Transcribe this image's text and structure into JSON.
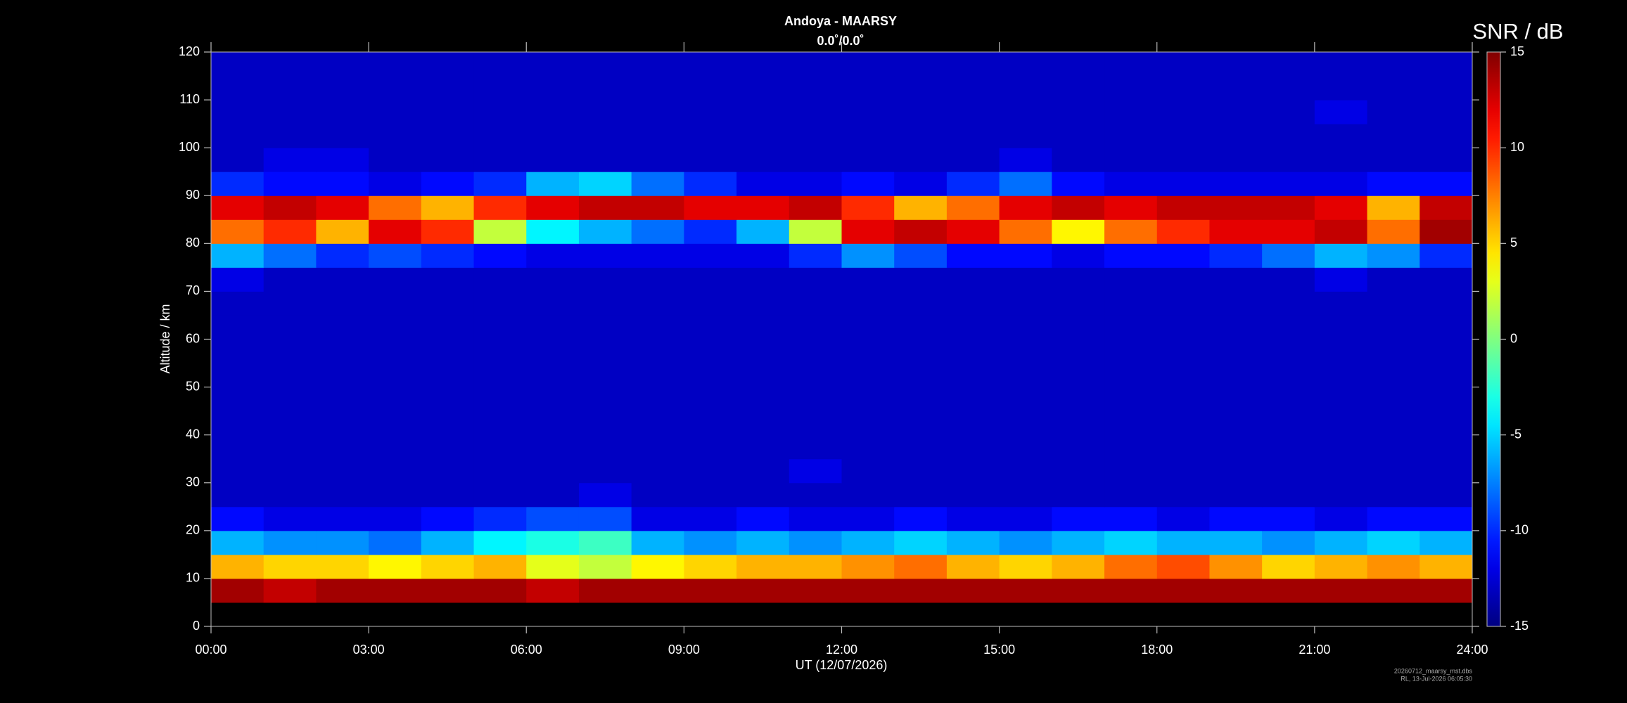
{
  "chart_data": {
    "type": "heatmap",
    "title": "Andoya - MAARSY",
    "subtitle": "0.0˚/0.0˚",
    "xlabel": "UT (12/07/2026)",
    "ylabel": "Altitude / km",
    "colorbar_label": "SNR / dB",
    "colormap": "jet",
    "footnotes": [
      "20260712_maarsy_mst.dbs",
      "RL, 13-Jul-2026 06:05:30"
    ],
    "xlim": [
      0,
      24
    ],
    "ylim": [
      0,
      120
    ],
    "clim": [
      -15,
      15
    ],
    "xticks": [
      {
        "value": 0,
        "label": "00:00"
      },
      {
        "value": 3,
        "label": "03:00"
      },
      {
        "value": 6,
        "label": "06:00"
      },
      {
        "value": 9,
        "label": "09:00"
      },
      {
        "value": 12,
        "label": "12:00"
      },
      {
        "value": 15,
        "label": "15:00"
      },
      {
        "value": 18,
        "label": "18:00"
      },
      {
        "value": 21,
        "label": "21:00"
      },
      {
        "value": 24,
        "label": "24:00"
      }
    ],
    "yticks": [
      0,
      10,
      20,
      30,
      40,
      50,
      60,
      70,
      80,
      90,
      100,
      110,
      120
    ],
    "cticks": [
      -15,
      -10,
      -5,
      0,
      5,
      10,
      15
    ],
    "xbins": [
      0,
      1,
      2,
      3,
      4,
      5,
      6,
      7,
      8,
      9,
      10,
      11,
      12,
      13,
      14,
      15,
      16,
      17,
      18,
      19,
      20,
      21,
      22,
      23,
      24
    ],
    "ybins": [
      0,
      5,
      10,
      15,
      20,
      25,
      30,
      35,
      40,
      45,
      50,
      55,
      60,
      65,
      70,
      75,
      80,
      85,
      90,
      95,
      100,
      105,
      110,
      115,
      120
    ],
    "values": [
      [
        null,
        null,
        null,
        null,
        null,
        null,
        null,
        null,
        null,
        null,
        null,
        null,
        null,
        null,
        null,
        null,
        null,
        null,
        null,
        null,
        null,
        null,
        null,
        null
      ],
      [
        14,
        13,
        14,
        14,
        14,
        14,
        13,
        14,
        14,
        14,
        14,
        14,
        14,
        14,
        14,
        14,
        14,
        14,
        14,
        14,
        14,
        14,
        14,
        14
      ],
      [
        6,
        5,
        5,
        4,
        5,
        6,
        3,
        2,
        4,
        5,
        6,
        6,
        7,
        8,
        6,
        5,
        6,
        8,
        9,
        7,
        5,
        6,
        7,
        6
      ],
      [
        -6,
        -7,
        -7,
        -8,
        -6,
        -4,
        -3,
        -2,
        -6,
        -7,
        -6,
        -7,
        -6,
        -5,
        -6,
        -7,
        -6,
        -5,
        -6,
        -6,
        -7,
        -6,
        -5,
        -6
      ],
      [
        -11,
        -12,
        -12,
        -12,
        -11,
        -10,
        -9,
        -9,
        -12,
        -12,
        -11,
        -12,
        -12,
        -11,
        -12,
        -12,
        -11,
        -11,
        -12,
        -11,
        -11,
        -12,
        -11,
        -11
      ],
      [
        -13,
        -13,
        -13,
        -13,
        -13,
        -13,
        -13,
        -12,
        -13,
        -13,
        -13,
        -13,
        -13,
        -13,
        -13,
        -13,
        -13,
        -13,
        -13,
        -13,
        -13,
        -13,
        -13,
        -13
      ],
      [
        -13,
        -13,
        -13,
        -13,
        -13,
        -13,
        -13,
        -13,
        -13,
        -13,
        -13,
        -12,
        -13,
        -13,
        -13,
        -13,
        -13,
        -13,
        -13,
        -13,
        -13,
        -13,
        -13,
        -13
      ],
      [
        -13,
        -13,
        -13,
        -13,
        -13,
        -13,
        -13,
        -13,
        -13,
        -13,
        -13,
        -13,
        -13,
        -13,
        -13,
        -13,
        -13,
        -13,
        -13,
        -13,
        -13,
        -13,
        -13,
        -13
      ],
      [
        -13,
        -13,
        -13,
        -13,
        -13,
        -13,
        -13,
        -13,
        -13,
        -13,
        -13,
        -13,
        -13,
        -13,
        -13,
        -13,
        -13,
        -13,
        -13,
        -13,
        -13,
        -13,
        -13,
        -13
      ],
      [
        -13,
        -13,
        -13,
        -13,
        -13,
        -13,
        -13,
        -13,
        -13,
        -13,
        -13,
        -13,
        -13,
        -13,
        -13,
        -13,
        -13,
        -13,
        -13,
        -13,
        -13,
        -13,
        -13,
        -13
      ],
      [
        -13,
        -13,
        -13,
        -13,
        -13,
        -13,
        -13,
        -13,
        -13,
        -13,
        -13,
        -13,
        -13,
        -13,
        -13,
        -13,
        -13,
        -13,
        -13,
        -13,
        -13,
        -13,
        -13,
        -13
      ],
      [
        -13,
        -13,
        -13,
        -13,
        -13,
        -13,
        -13,
        -13,
        -13,
        -13,
        -13,
        -13,
        -13,
        -13,
        -13,
        -13,
        -13,
        -13,
        -13,
        -13,
        -13,
        -13,
        -13,
        -13
      ],
      [
        -13,
        -13,
        -13,
        -13,
        -13,
        -13,
        -13,
        -13,
        -13,
        -13,
        -13,
        -13,
        -13,
        -13,
        -13,
        -13,
        -13,
        -13,
        -13,
        -13,
        -13,
        -13,
        -13,
        -13
      ],
      [
        -13,
        -13,
        -13,
        -13,
        -13,
        -13,
        -13,
        -13,
        -13,
        -13,
        -13,
        -13,
        -13,
        -13,
        -13,
        -13,
        -13,
        -13,
        -13,
        -13,
        -13,
        -13,
        -13,
        -13
      ],
      [
        -12,
        -13,
        -13,
        -13,
        -13,
        -13,
        -13,
        -13,
        -13,
        -13,
        -13,
        -13,
        -13,
        -13,
        -13,
        -13,
        -13,
        -13,
        -13,
        -13,
        -13,
        -12,
        -13,
        -13
      ],
      [
        -6,
        -8,
        -10,
        -9,
        -10,
        -11,
        -12,
        -12,
        -12,
        -12,
        -12,
        -10,
        -7,
        -9,
        -11,
        -11,
        -12,
        -11,
        -11,
        -10,
        -8,
        -6,
        -7,
        -10
      ],
      [
        8,
        10,
        6,
        12,
        10,
        2,
        -4,
        -6,
        -8,
        -10,
        -6,
        2,
        12,
        13,
        12,
        8,
        4,
        8,
        10,
        12,
        12,
        13,
        8,
        14
      ],
      [
        12,
        13,
        12,
        8,
        6,
        10,
        12,
        13,
        13,
        12,
        12,
        13,
        10,
        6,
        8,
        12,
        13,
        12,
        13,
        13,
        13,
        12,
        6,
        13
      ],
      [
        -10,
        -11,
        -11,
        -12,
        -11,
        -10,
        -6,
        -5,
        -8,
        -10,
        -12,
        -12,
        -11,
        -12,
        -10,
        -8,
        -11,
        -12,
        -12,
        -12,
        -12,
        -12,
        -11,
        -11
      ],
      [
        -13,
        -12,
        -12,
        -13,
        -13,
        -13,
        -13,
        -13,
        -13,
        -13,
        -13,
        -13,
        -13,
        -13,
        -13,
        -12,
        -13,
        -13,
        -13,
        -13,
        -13,
        -13,
        -13,
        -13
      ],
      [
        -13,
        -13,
        -13,
        -13,
        -13,
        -13,
        -13,
        -13,
        -13,
        -13,
        -13,
        -13,
        -13,
        -13,
        -13,
        -13,
        -13,
        -13,
        -13,
        -13,
        -13,
        -13,
        -13,
        -13
      ],
      [
        -13,
        -13,
        -13,
        -13,
        -13,
        -13,
        -13,
        -13,
        -13,
        -13,
        -13,
        -13,
        -13,
        -13,
        -13,
        -13,
        -13,
        -13,
        -13,
        -13,
        -13,
        -12,
        -13,
        -13
      ],
      [
        -13,
        -13,
        -13,
        -13,
        -13,
        -13,
        -13,
        -13,
        -13,
        -13,
        -13,
        -13,
        -13,
        -13,
        -13,
        -13,
        -13,
        -13,
        -13,
        -13,
        -13,
        -13,
        -13,
        -13
      ],
      [
        -13,
        -13,
        -13,
        -13,
        -13,
        -13,
        -13,
        -13,
        -13,
        -13,
        -13,
        -13,
        -13,
        -13,
        -13,
        -13,
        -13,
        -13,
        -13,
        -13,
        -13,
        -13,
        -13,
        -13
      ]
    ]
  }
}
